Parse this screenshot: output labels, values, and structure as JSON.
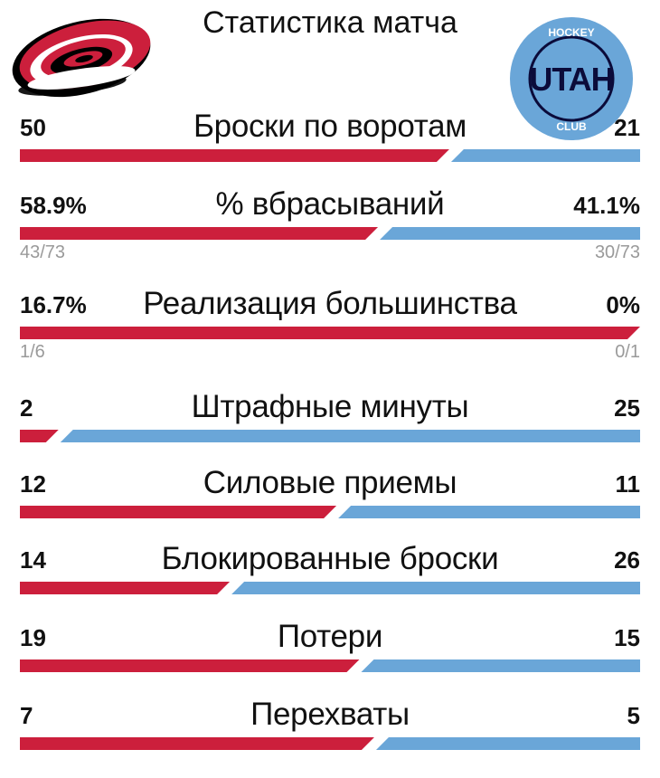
{
  "header": {
    "title": "Статистика матча",
    "home_team_color": "#cc1f3c",
    "away_team_color": "#6aa6d8",
    "home_logo_icon": "carolina-hurricanes-logo",
    "away_logo_icon": "utah-hockey-club-logo",
    "away_logo_text": "UTAH",
    "away_logo_ring_top": "HOCKEY",
    "away_logo_ring_bottom": "CLUB"
  },
  "stats": [
    {
      "label": "Броски по воротам",
      "home": "50",
      "away": "21",
      "home_share": 0.704
    },
    {
      "label": "% вбрасываний",
      "home": "58.9%",
      "away": "41.1%",
      "home_share": 0.589,
      "home_sub": "43/73",
      "away_sub": "30/73"
    },
    {
      "label": "Реализация большинства",
      "home": "16.7%",
      "away": "0%",
      "home_share": 1.0,
      "home_sub": "1/6",
      "away_sub": "0/1"
    },
    {
      "label": "Штрафные минуты",
      "home": "2",
      "away": "25",
      "home_share": 0.074
    },
    {
      "label": "Силовые приемы",
      "home": "12",
      "away": "11",
      "home_share": 0.522
    },
    {
      "label": "Блокированные броски",
      "home": "14",
      "away": "26",
      "home_share": 0.35
    },
    {
      "label": "Потери",
      "home": "19",
      "away": "15",
      "home_share": 0.559
    },
    {
      "label": "Перехваты",
      "home": "7",
      "away": "5",
      "home_share": 0.583
    }
  ]
}
